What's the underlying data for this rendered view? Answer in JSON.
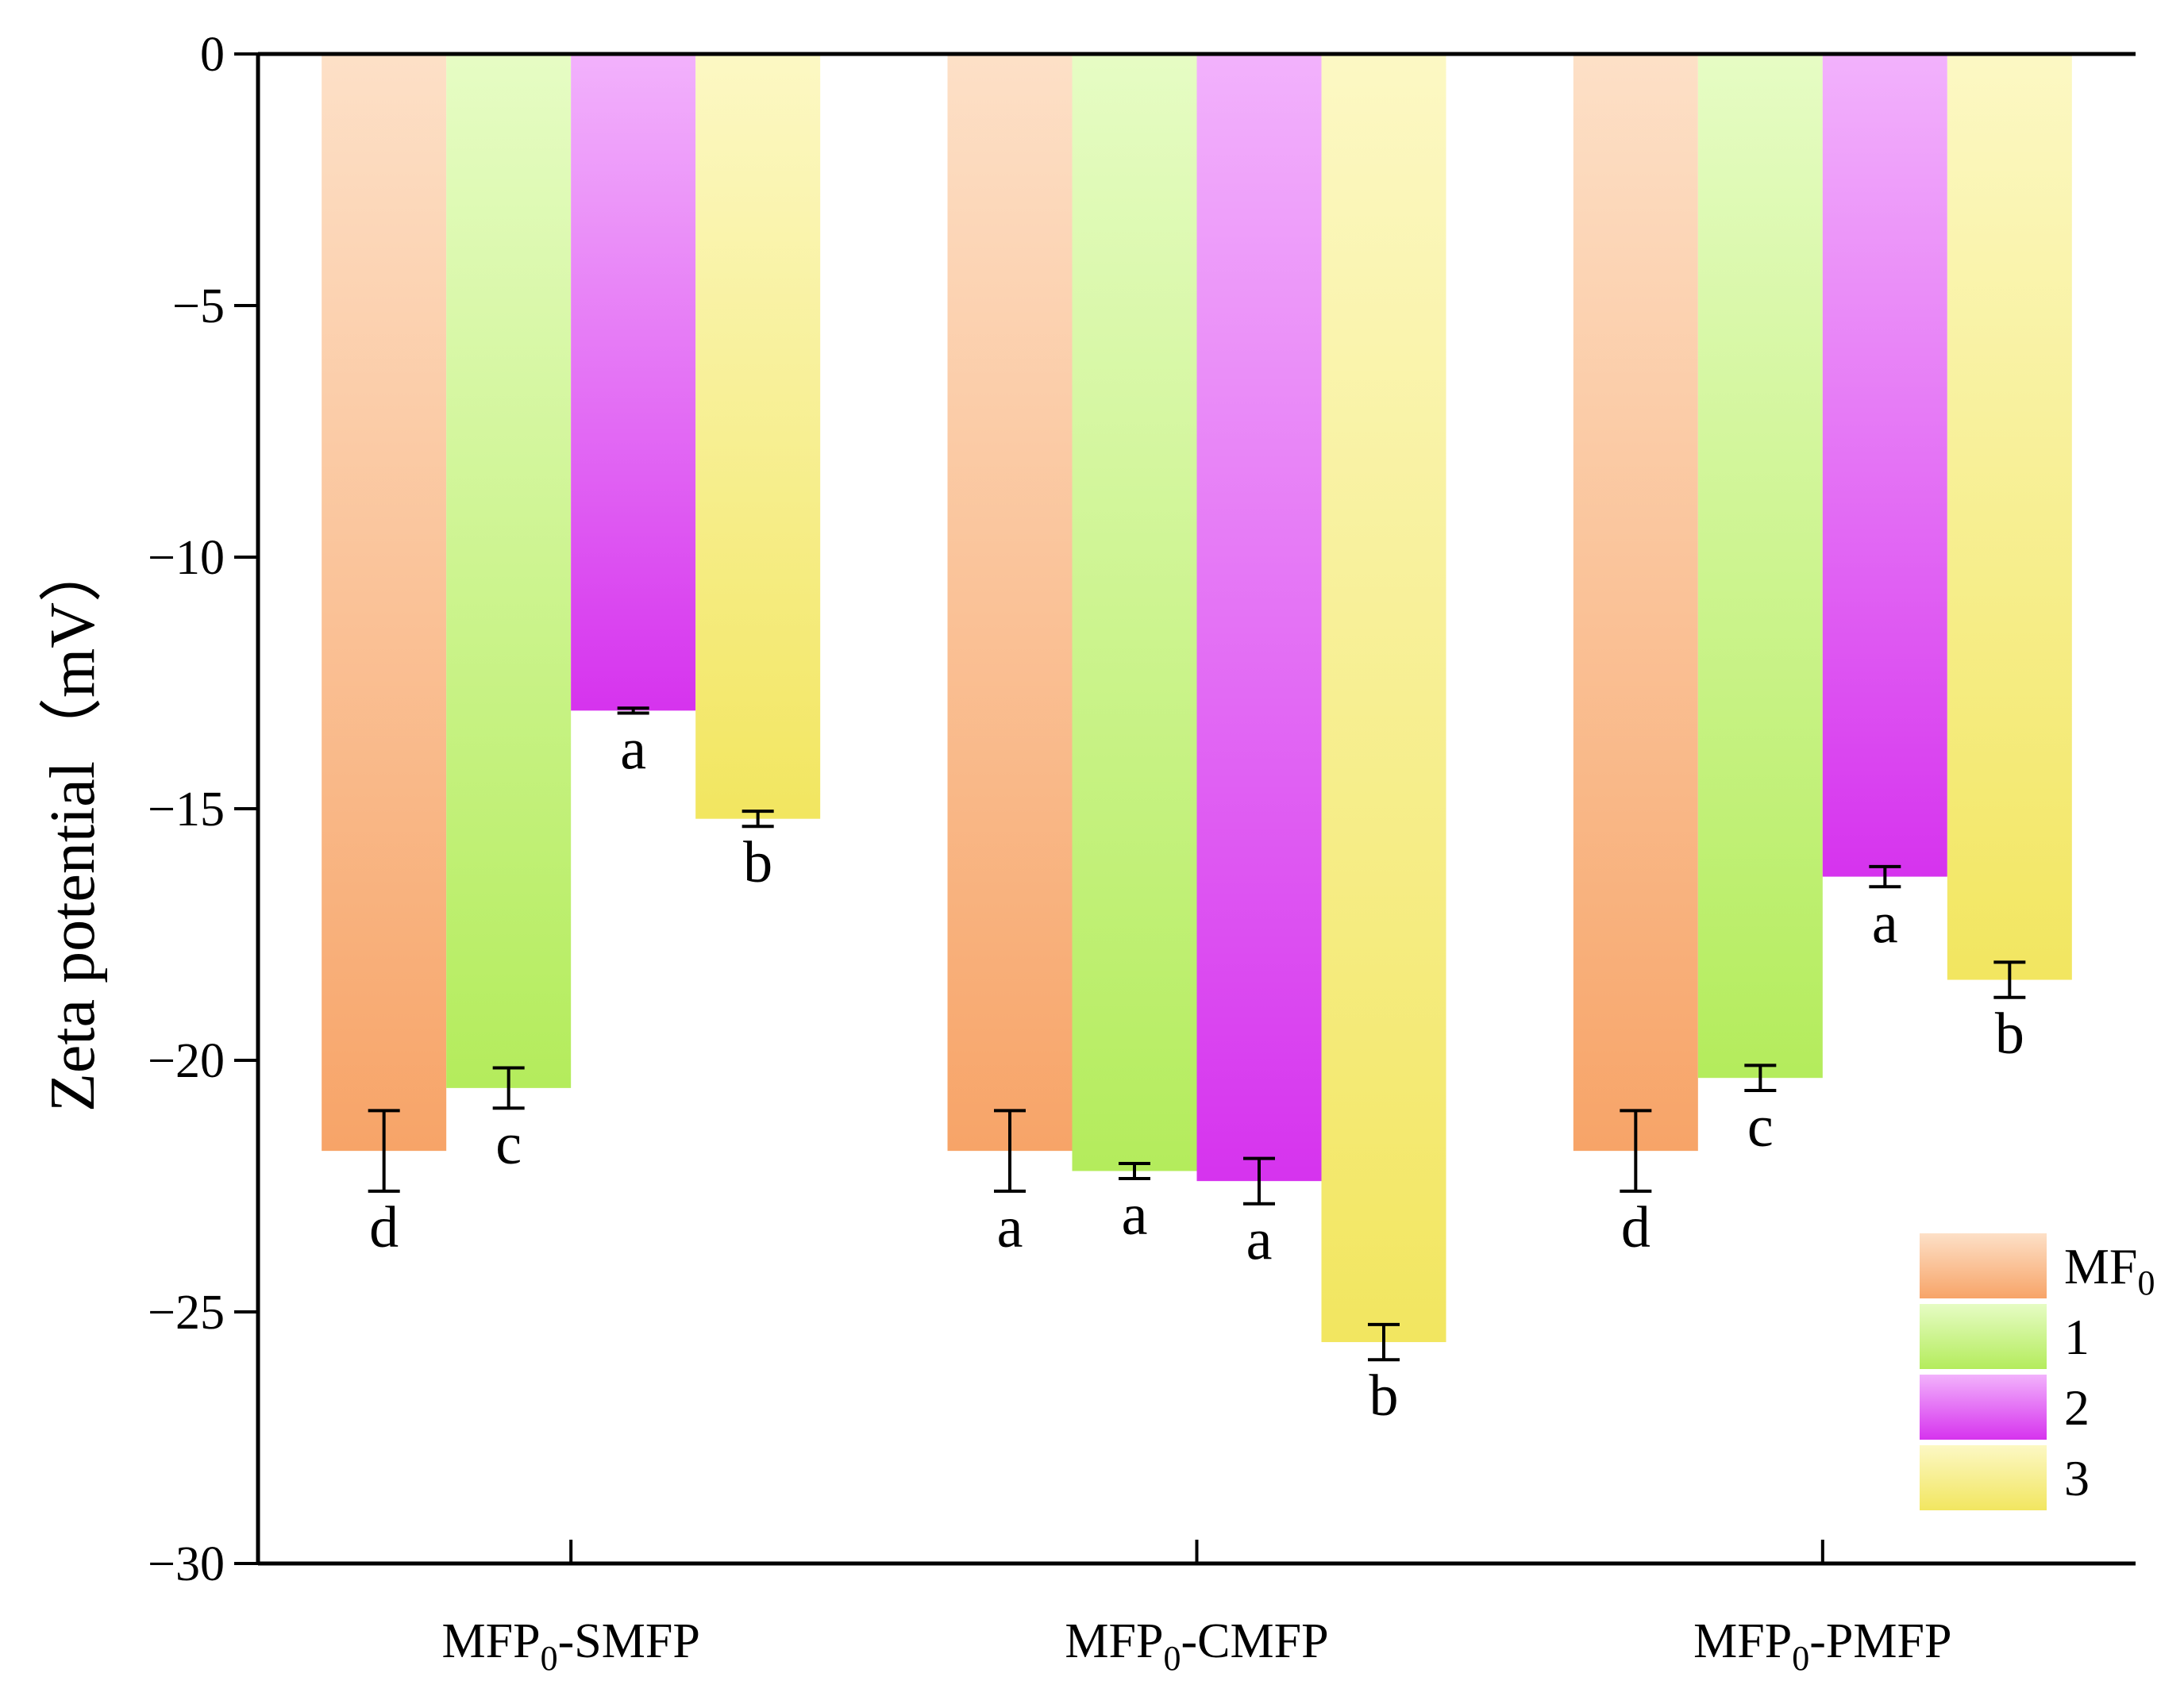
{
  "chart_data": {
    "type": "bar",
    "title": "",
    "xlabel": "",
    "ylabel": "Zeta potential（mV）",
    "ylim": [
      -30,
      0
    ],
    "yticks": [
      0,
      -5,
      -10,
      -15,
      -20,
      -25,
      -30
    ],
    "ytick_labels": [
      "0",
      "−5",
      "−10",
      "−15",
      "−20",
      "−25",
      "−30"
    ],
    "grid": false,
    "legend_position": "bottom-right",
    "categories": [
      {
        "main": "MFP",
        "sub": "0",
        "rest": "-SMFP"
      },
      {
        "main": "MFP",
        "sub": "0",
        "rest": "-CMFP"
      },
      {
        "main": "MFP",
        "sub": "0",
        "rest": "-PMFP"
      }
    ],
    "series": [
      {
        "name": "MF",
        "name_sub": "0",
        "gradient": [
          "#fde0c7",
          "#f7a468"
        ],
        "values": [
          -21.8,
          -21.8,
          -21.8
        ],
        "errors": [
          0.8,
          0.8,
          0.8
        ],
        "letters": [
          "d",
          "a",
          "d"
        ]
      },
      {
        "name": "1",
        "name_sub": "",
        "gradient": [
          "#e6fcc4",
          "#b4ec5c"
        ],
        "values": [
          -20.55,
          -22.2,
          -20.35
        ],
        "errors": [
          0.4,
          0.15,
          0.25
        ],
        "letters": [
          "c",
          "a",
          "c"
        ]
      },
      {
        "name": "2",
        "name_sub": "",
        "gradient": [
          "#f2b2fc",
          "#d633ee"
        ],
        "values": [
          -13.05,
          -22.4,
          -16.35
        ],
        "errors": [
          0.05,
          0.45,
          0.2
        ],
        "letters": [
          "a",
          "a",
          "a"
        ]
      },
      {
        "name": "3",
        "name_sub": "",
        "gradient": [
          "#fcf8c4",
          "#f2e660"
        ],
        "values": [
          -15.2,
          -25.6,
          -18.4
        ],
        "errors": [
          0.15,
          0.35,
          0.35
        ],
        "letters": [
          "b",
          "b",
          "b"
        ]
      }
    ]
  }
}
